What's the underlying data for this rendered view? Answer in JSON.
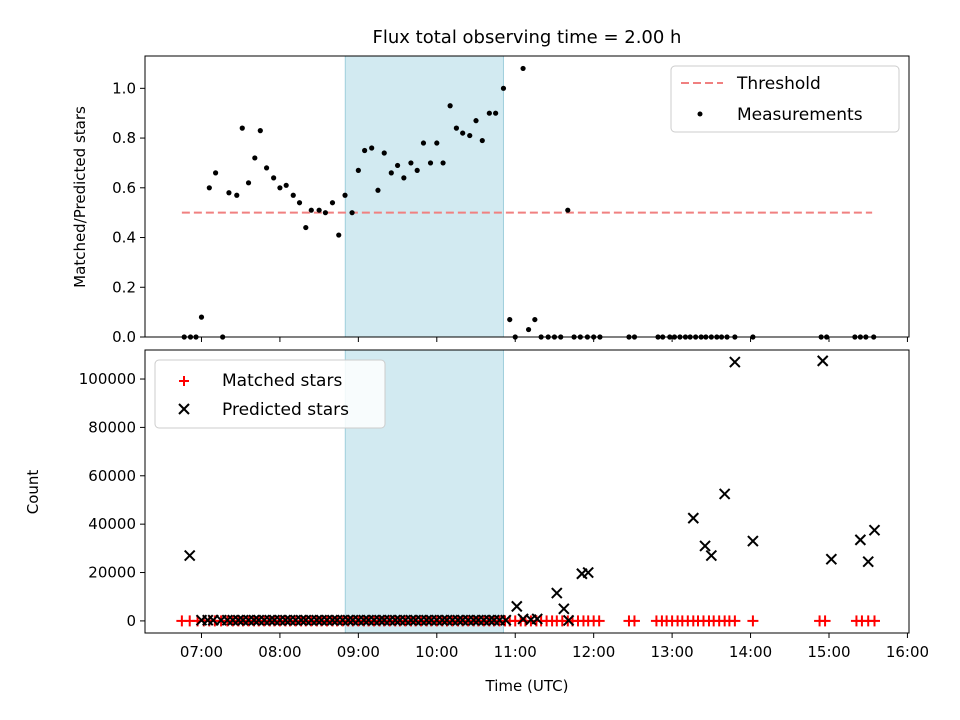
{
  "chart_data": {
    "type": "scatter",
    "title": "Flux total observing time = 2.00 h",
    "shaded_interval": {
      "start": "08:50",
      "end": "10:51",
      "color": "#add8e6"
    },
    "x_ticks": [
      "07:00",
      "08:00",
      "09:00",
      "10:00",
      "11:00",
      "12:00",
      "13:00",
      "14:00",
      "15:00",
      "16:00"
    ],
    "x_range_hours": [
      6.28,
      16.02
    ],
    "xlabel": "Time (UTC)",
    "top_panel": {
      "ylabel": "Matched/Predicted stars",
      "ylim": [
        0,
        1.13
      ],
      "y_ticks": [
        "0.0",
        "0.2",
        "0.4",
        "0.6",
        "0.8",
        "1.0"
      ],
      "legend_position": "top-right",
      "threshold": {
        "name": "Threshold",
        "value": 0.5,
        "x_start_hours": 6.75,
        "x_end_hours": 15.55,
        "color": "#f08080"
      },
      "measurements_label": "Measurements",
      "measurements": [
        [
          6.78,
          0
        ],
        [
          6.86,
          0
        ],
        [
          6.93,
          0
        ],
        [
          7.0,
          0.08
        ],
        [
          7.1,
          0.6
        ],
        [
          7.18,
          0.66
        ],
        [
          7.27,
          0
        ],
        [
          7.35,
          0.58
        ],
        [
          7.45,
          0.57
        ],
        [
          7.52,
          0.84
        ],
        [
          7.6,
          0.62
        ],
        [
          7.68,
          0.72
        ],
        [
          7.75,
          0.83
        ],
        [
          7.83,
          0.68
        ],
        [
          7.92,
          0.64
        ],
        [
          8.0,
          0.6
        ],
        [
          8.08,
          0.61
        ],
        [
          8.17,
          0.57
        ],
        [
          8.25,
          0.54
        ],
        [
          8.33,
          0.44
        ],
        [
          8.4,
          0.51
        ],
        [
          8.5,
          0.51
        ],
        [
          8.58,
          0.5
        ],
        [
          8.67,
          0.54
        ],
        [
          8.75,
          0.41
        ],
        [
          8.83,
          0.57
        ],
        [
          8.92,
          0.5
        ],
        [
          9.0,
          0.67
        ],
        [
          9.08,
          0.75
        ],
        [
          9.17,
          0.76
        ],
        [
          9.25,
          0.59
        ],
        [
          9.33,
          0.74
        ],
        [
          9.42,
          0.66
        ],
        [
          9.5,
          0.69
        ],
        [
          9.58,
          0.64
        ],
        [
          9.67,
          0.7
        ],
        [
          9.75,
          0.67
        ],
        [
          9.83,
          0.78
        ],
        [
          9.92,
          0.7
        ],
        [
          10.0,
          0.78
        ],
        [
          10.08,
          0.7
        ],
        [
          10.17,
          0.93
        ],
        [
          10.25,
          0.84
        ],
        [
          10.33,
          0.82
        ],
        [
          10.42,
          0.81
        ],
        [
          10.5,
          0.87
        ],
        [
          10.58,
          0.79
        ],
        [
          10.67,
          0.9
        ],
        [
          10.75,
          0.9
        ],
        [
          10.85,
          1.0
        ],
        [
          10.93,
          0.07
        ],
        [
          11.0,
          0
        ],
        [
          11.1,
          1.08
        ],
        [
          11.17,
          0.03
        ],
        [
          11.25,
          0.07
        ],
        [
          11.33,
          0
        ],
        [
          11.42,
          0
        ],
        [
          11.5,
          0
        ],
        [
          11.58,
          0
        ],
        [
          11.67,
          0.51
        ],
        [
          11.75,
          0
        ],
        [
          11.83,
          0
        ],
        [
          11.92,
          0
        ],
        [
          12.0,
          0
        ],
        [
          12.08,
          0
        ],
        [
          12.45,
          0
        ],
        [
          12.52,
          0
        ],
        [
          12.82,
          0
        ],
        [
          12.88,
          0
        ],
        [
          12.97,
          0
        ],
        [
          13.03,
          0
        ],
        [
          13.1,
          0
        ],
        [
          13.17,
          0
        ],
        [
          13.23,
          0
        ],
        [
          13.3,
          0
        ],
        [
          13.37,
          0
        ],
        [
          13.43,
          0
        ],
        [
          13.5,
          0
        ],
        [
          13.57,
          0
        ],
        [
          13.63,
          0
        ],
        [
          13.7,
          0
        ],
        [
          13.8,
          0
        ],
        [
          14.03,
          0
        ],
        [
          14.9,
          0
        ],
        [
          14.97,
          0
        ],
        [
          15.33,
          0
        ],
        [
          15.4,
          0
        ],
        [
          15.47,
          0
        ],
        [
          15.57,
          0
        ]
      ]
    },
    "bottom_panel": {
      "ylabel": "Count",
      "ylim": [
        -5000,
        112000
      ],
      "y_ticks": [
        "0",
        "20000",
        "40000",
        "60000",
        "80000",
        "100000"
      ],
      "legend_position": "top-left",
      "series": [
        {
          "name": "Matched stars",
          "marker": "+",
          "color": "#ff0000",
          "x_hours": [
            6.75,
            6.85,
            6.95,
            7.03,
            7.1,
            7.17,
            7.25,
            7.33,
            7.4,
            7.47,
            7.53,
            7.6,
            7.67,
            7.73,
            7.8,
            7.87,
            7.93,
            8.0,
            8.07,
            8.13,
            8.2,
            8.27,
            8.33,
            8.4,
            8.47,
            8.53,
            8.6,
            8.67,
            8.73,
            8.8,
            8.87,
            8.93,
            9.0,
            9.07,
            9.13,
            9.2,
            9.27,
            9.33,
            9.4,
            9.47,
            9.53,
            9.6,
            9.67,
            9.73,
            9.8,
            9.87,
            9.93,
            10.0,
            10.07,
            10.13,
            10.2,
            10.27,
            10.33,
            10.4,
            10.47,
            10.53,
            10.6,
            10.67,
            10.73,
            10.8,
            10.87,
            10.93,
            11.0,
            11.07,
            11.13,
            11.2,
            11.27,
            11.33,
            11.4,
            11.47,
            11.53,
            11.6,
            11.67,
            11.73,
            11.8,
            11.87,
            11.93,
            12.0,
            12.07,
            12.45,
            12.52,
            12.8,
            12.87,
            12.93,
            13.0,
            13.07,
            13.13,
            13.2,
            13.27,
            13.33,
            13.4,
            13.47,
            13.53,
            13.6,
            13.67,
            13.73,
            13.8,
            14.03,
            14.88,
            14.95,
            15.35,
            15.42,
            15.5,
            15.58
          ],
          "value": 0
        },
        {
          "name": "Predicted stars",
          "marker": "x",
          "color": "#000000",
          "points": [
            [
              6.85,
              27000
            ],
            [
              7.0,
              300
            ],
            [
              7.08,
              300
            ],
            [
              7.15,
              300
            ],
            [
              7.25,
              300
            ],
            [
              7.33,
              300
            ],
            [
              7.4,
              300
            ],
            [
              7.47,
              300
            ],
            [
              7.53,
              300
            ],
            [
              7.6,
              300
            ],
            [
              7.67,
              300
            ],
            [
              7.73,
              300
            ],
            [
              7.8,
              300
            ],
            [
              7.87,
              300
            ],
            [
              7.93,
              300
            ],
            [
              8.0,
              300
            ],
            [
              8.07,
              300
            ],
            [
              8.13,
              300
            ],
            [
              8.2,
              300
            ],
            [
              8.27,
              300
            ],
            [
              8.33,
              300
            ],
            [
              8.4,
              300
            ],
            [
              8.47,
              300
            ],
            [
              8.53,
              300
            ],
            [
              8.6,
              300
            ],
            [
              8.67,
              300
            ],
            [
              8.73,
              300
            ],
            [
              8.8,
              300
            ],
            [
              8.87,
              300
            ],
            [
              8.93,
              300
            ],
            [
              9.0,
              300
            ],
            [
              9.07,
              300
            ],
            [
              9.13,
              300
            ],
            [
              9.2,
              300
            ],
            [
              9.27,
              300
            ],
            [
              9.33,
              300
            ],
            [
              9.4,
              300
            ],
            [
              9.47,
              300
            ],
            [
              9.53,
              300
            ],
            [
              9.6,
              300
            ],
            [
              9.67,
              300
            ],
            [
              9.73,
              300
            ],
            [
              9.8,
              300
            ],
            [
              9.87,
              300
            ],
            [
              9.93,
              300
            ],
            [
              10.0,
              300
            ],
            [
              10.07,
              300
            ],
            [
              10.13,
              300
            ],
            [
              10.2,
              300
            ],
            [
              10.27,
              300
            ],
            [
              10.33,
              300
            ],
            [
              10.4,
              300
            ],
            [
              10.47,
              300
            ],
            [
              10.53,
              300
            ],
            [
              10.6,
              300
            ],
            [
              10.67,
              300
            ],
            [
              10.73,
              300
            ],
            [
              10.8,
              300
            ],
            [
              10.88,
              300
            ],
            [
              11.02,
              6000
            ],
            [
              11.1,
              800
            ],
            [
              11.2,
              500
            ],
            [
              11.28,
              800
            ],
            [
              11.53,
              11500
            ],
            [
              11.62,
              5000
            ],
            [
              11.68,
              200
            ],
            [
              11.85,
              19500
            ],
            [
              11.93,
              20000
            ],
            [
              13.27,
              42500
            ],
            [
              13.42,
              31000
            ],
            [
              13.5,
              27000
            ],
            [
              13.67,
              52500
            ],
            [
              13.8,
              107000
            ],
            [
              14.03,
              33000
            ],
            [
              14.92,
              107500
            ],
            [
              15.03,
              25500
            ],
            [
              15.4,
              33500
            ],
            [
              15.5,
              24500
            ],
            [
              15.58,
              37500
            ]
          ]
        }
      ]
    }
  }
}
